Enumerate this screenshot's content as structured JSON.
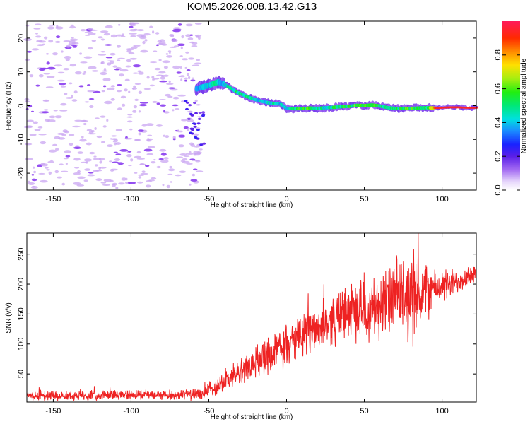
{
  "title": "KOM5.2026.008.13.42.G13",
  "colors": {
    "snr_line": "#ee2222",
    "speckle": "#c9a6f2",
    "speckle_dark": "#8a3df0",
    "frame": "#000000"
  },
  "chart_data": [
    {
      "type": "heatmap",
      "title": "",
      "xlabel": "Height of straight line (km)",
      "ylabel": "Frequency (Hz)",
      "xlim": [
        -167,
        122
      ],
      "ylim": [
        -25,
        25
      ],
      "xticks": [
        -150,
        -100,
        -50,
        0,
        50,
        100
      ],
      "yticks": [
        -20,
        -10,
        0,
        10,
        20
      ],
      "xtick_labels": [
        "-150",
        "-100",
        "-50",
        "0",
        "50",
        "100"
      ],
      "ytick_labels": [
        "-20",
        "-10",
        "0",
        "10",
        "20"
      ],
      "colorbar": {
        "label": "Normalized spectral amplitude",
        "range": [
          0,
          1
        ],
        "ticks": [
          0.0,
          0.2,
          0.4,
          0.6,
          0.8
        ],
        "tick_labels": [
          "0.0",
          "0.2",
          "0.4",
          "0.6",
          "0.8"
        ]
      },
      "noise_region_km": [
        -167,
        -55
      ],
      "signal_trace": {
        "x_km": [
          -58,
          -54,
          -50,
          -47,
          -44,
          -40,
          -36,
          -32,
          -28,
          -24,
          -20,
          -16,
          -12,
          -8,
          -4,
          0,
          5,
          10,
          15,
          20,
          25,
          30,
          35,
          40,
          45,
          50,
          55,
          60,
          65,
          70,
          75,
          80,
          85,
          90,
          95,
          100,
          105,
          110,
          115,
          120
        ],
        "freq_hz": [
          5.0,
          5.5,
          6.0,
          6.5,
          7.0,
          6.3,
          5.2,
          4.0,
          3.2,
          2.4,
          1.8,
          1.3,
          0.9,
          0.6,
          0.5,
          -0.8,
          -0.9,
          -0.9,
          -0.7,
          -0.8,
          -0.6,
          -0.5,
          -0.3,
          -0.2,
          0.1,
          0.0,
          0.2,
          -0.1,
          -0.6,
          -0.8,
          -0.8,
          -0.8,
          -0.7,
          -0.6,
          -0.7,
          -0.6,
          -0.5,
          -0.5,
          -0.6,
          -0.6
        ],
        "amplitude": [
          0.25,
          0.3,
          0.3,
          0.35,
          0.3,
          0.3,
          0.35,
          0.45,
          0.4,
          0.35,
          0.3,
          0.3,
          0.3,
          0.35,
          0.3,
          0.35,
          0.4,
          0.5,
          0.45,
          0.4,
          0.35,
          0.4,
          0.45,
          0.45,
          0.5,
          0.5,
          0.45,
          0.5,
          0.4,
          0.4,
          0.45,
          0.5,
          0.45,
          0.4,
          0.9,
          0.95,
          0.95,
          0.95,
          0.95,
          0.95
        ]
      }
    },
    {
      "type": "line",
      "title": "",
      "xlabel": "Height of straight line (km)",
      "ylabel": "SNR (v/v)",
      "xlim": [
        -167,
        122
      ],
      "ylim": [
        3,
        285
      ],
      "xticks": [
        -150,
        -100,
        -50,
        0,
        50,
        100
      ],
      "yticks": [
        50,
        100,
        150,
        200,
        250
      ],
      "xtick_labels": [
        "-150",
        "-100",
        "-50",
        "0",
        "50",
        "100"
      ],
      "ytick_labels": [
        "50",
        "100",
        "150",
        "200",
        "250"
      ],
      "series": [
        {
          "name": "SNR",
          "x": [
            -167,
            -150,
            -130,
            -110,
            -90,
            -70,
            -55,
            -50,
            -45,
            -40,
            -35,
            -30,
            -25,
            -20,
            -15,
            -10,
            -5,
            0,
            5,
            10,
            15,
            20,
            25,
            30,
            35,
            40,
            45,
            50,
            55,
            60,
            65,
            70,
            75,
            80,
            85,
            90,
            95,
            100,
            105,
            110,
            115,
            122
          ],
          "values": [
            14,
            14,
            14,
            15,
            15,
            15,
            16,
            22,
            30,
            38,
            45,
            52,
            62,
            70,
            78,
            85,
            90,
            95,
            105,
            112,
            120,
            128,
            135,
            142,
            148,
            152,
            155,
            158,
            160,
            165,
            170,
            175,
            178,
            180,
            182,
            188,
            192,
            196,
            200,
            205,
            212,
            220
          ],
          "noise_amplitude": [
            8,
            8,
            8,
            8,
            8,
            8,
            10,
            14,
            16,
            18,
            20,
            22,
            24,
            26,
            28,
            30,
            30,
            32,
            34,
            36,
            38,
            40,
            40,
            42,
            44,
            46,
            48,
            50,
            52,
            56,
            60,
            65,
            70,
            75,
            75,
            50,
            30,
            28,
            25,
            22,
            20,
            18
          ]
        }
      ]
    }
  ]
}
